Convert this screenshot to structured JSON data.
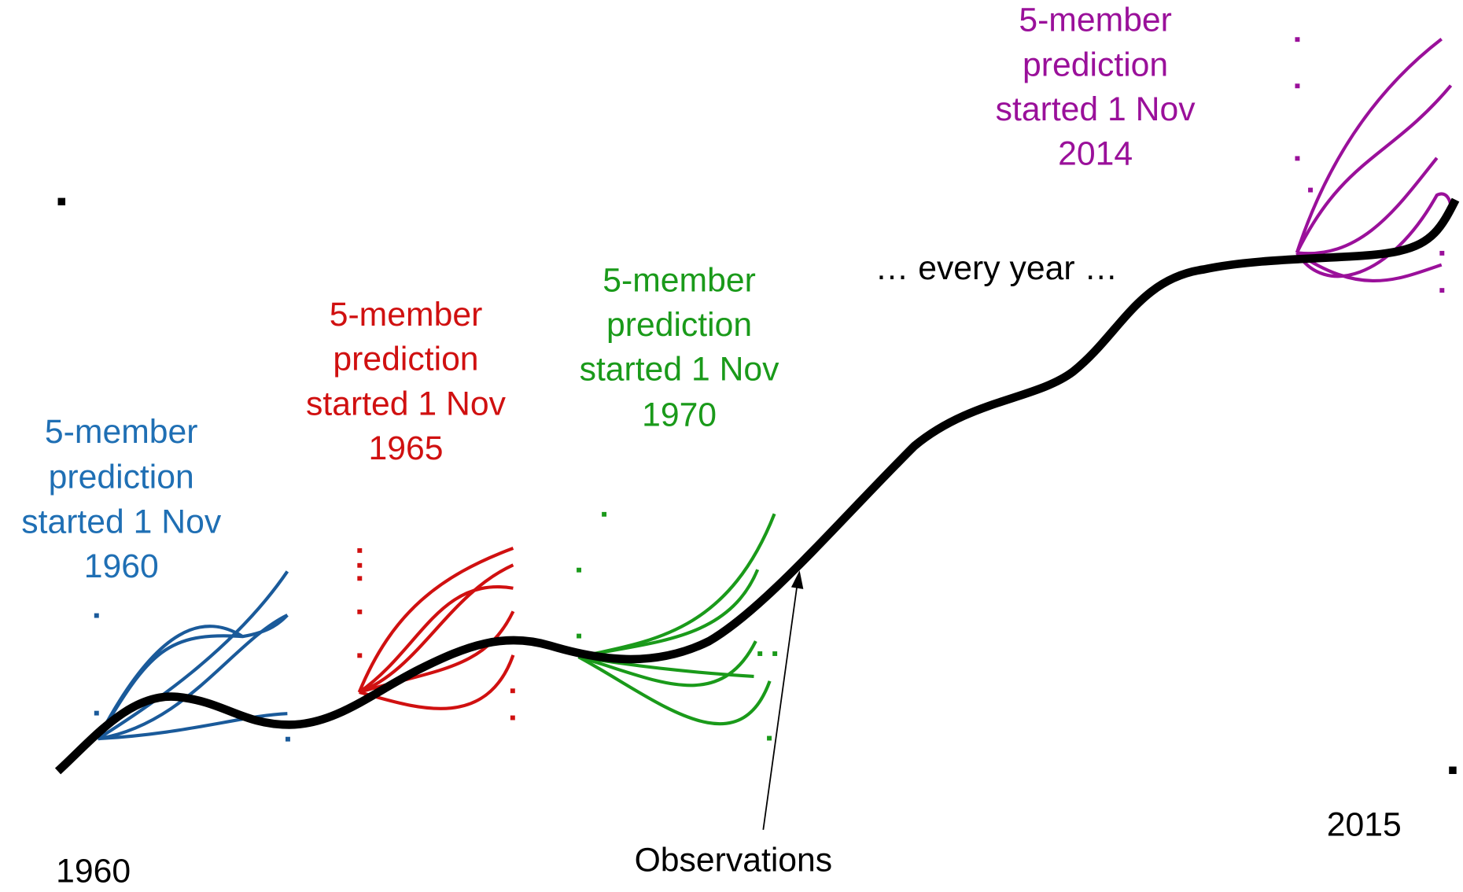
{
  "predictions": [
    {
      "lines": [
        "5-member",
        "prediction",
        "started 1 Nov",
        "1960"
      ]
    },
    {
      "lines": [
        "5-member",
        "prediction",
        "started 1 Nov",
        "1965"
      ]
    },
    {
      "lines": [
        "5-member",
        "prediction",
        "started 1 Nov",
        "1970"
      ]
    },
    {
      "lines": [
        "5-member",
        "prediction",
        "started 1 Nov",
        "2014"
      ]
    }
  ],
  "note": "… every year …",
  "observations_label": "Observations",
  "start_year": "1960",
  "end_year": "2015"
}
